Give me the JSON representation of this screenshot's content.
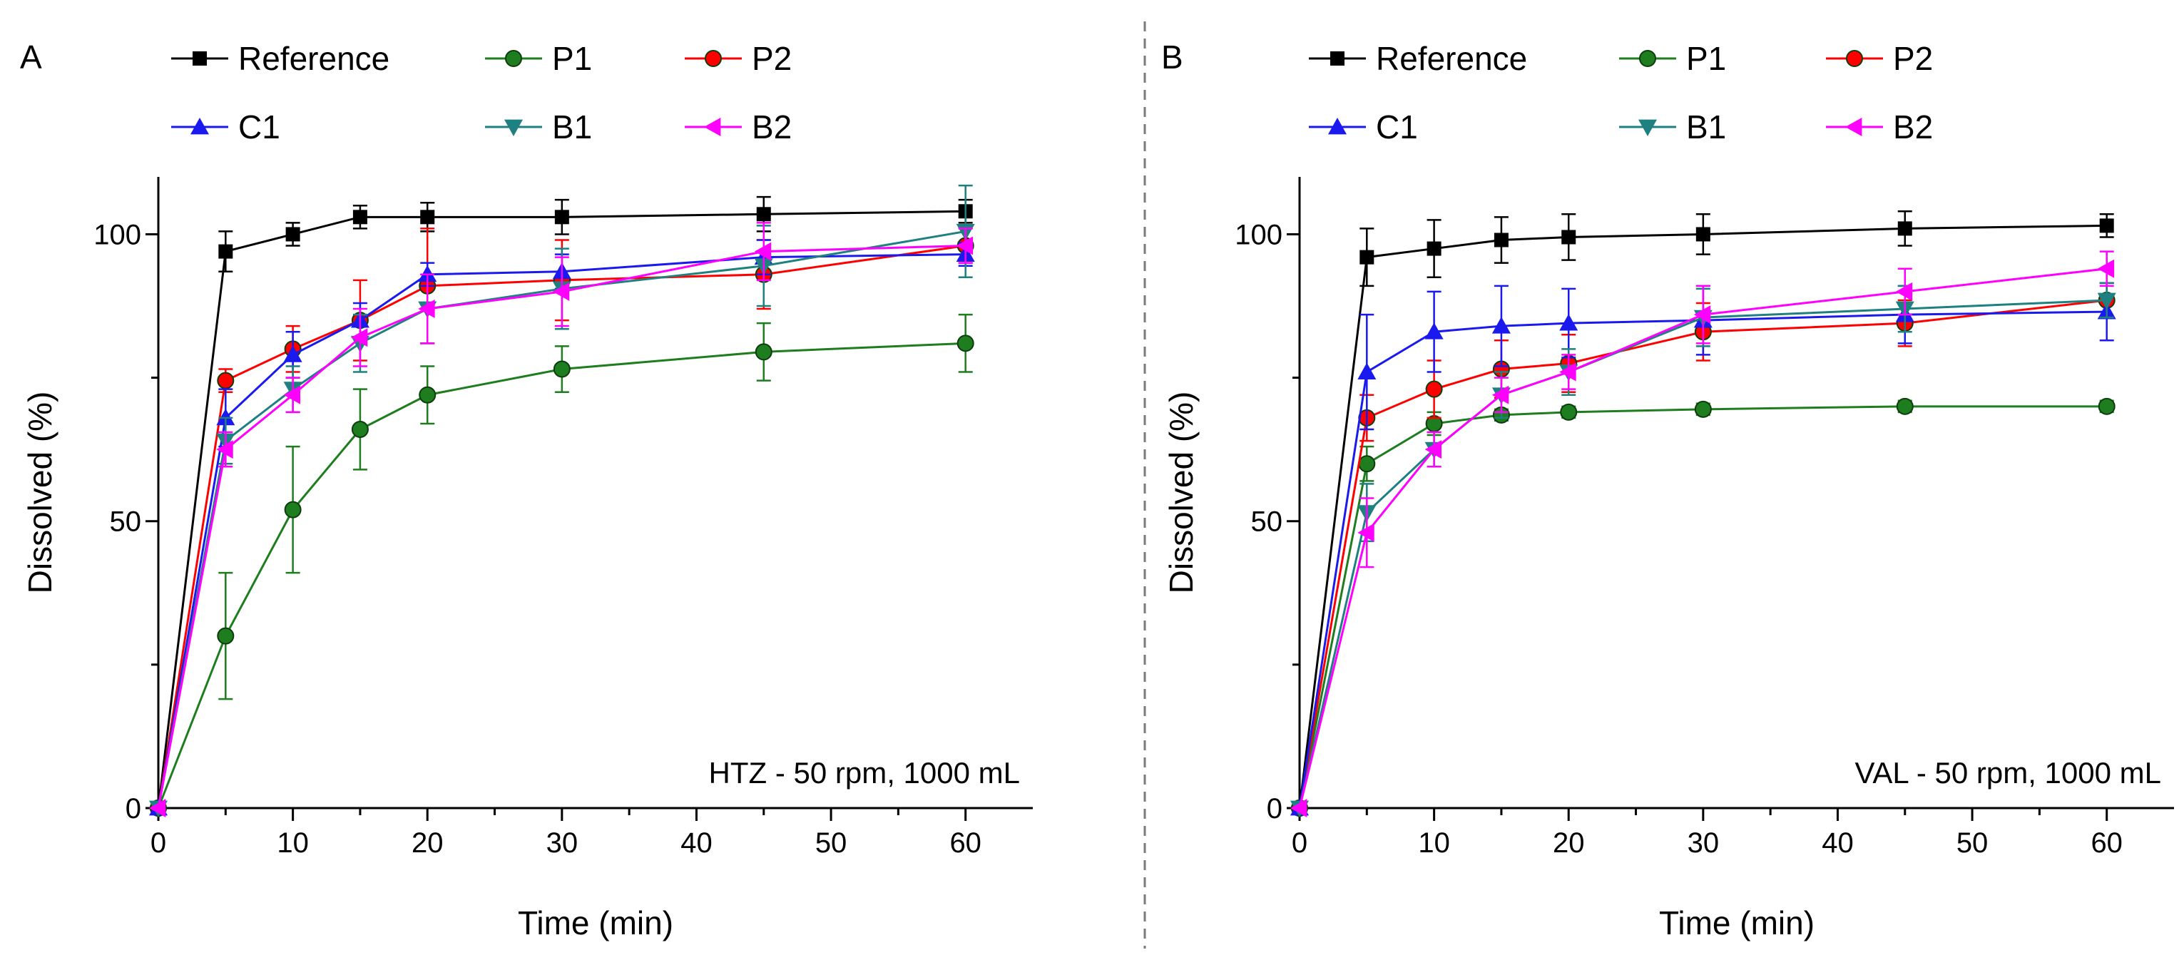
{
  "chart_data": [
    {
      "type": "line",
      "panel_label": "A",
      "annotation": "HTZ - 50 rpm, 1000 mL",
      "xlabel": "Time (min)",
      "ylabel": "Dissolved (%)",
      "xlim": [
        0,
        65
      ],
      "ylim": [
        0,
        110
      ],
      "xticks": [
        0,
        10,
        20,
        30,
        40,
        50,
        60
      ],
      "yticks": [
        0,
        50,
        100
      ],
      "xtick_labels": [
        "0",
        "10",
        "20",
        "30",
        "40",
        "50",
        "60"
      ],
      "ytick_labels": [
        "0",
        "50",
        "100"
      ],
      "legend_position": "top",
      "x": [
        0,
        5,
        10,
        15,
        20,
        30,
        45,
        60
      ],
      "series": [
        {
          "name": "Reference",
          "color": "#000000",
          "marker": "square",
          "values": [
            0,
            97,
            100,
            103,
            103,
            103,
            103.5,
            104
          ],
          "errors": [
            0,
            3.5,
            2,
            2,
            2.5,
            3,
            3,
            2
          ]
        },
        {
          "name": "P1",
          "color": "#1e7d1e",
          "marker": "circle",
          "values": [
            0,
            30,
            52,
            66,
            72,
            76.5,
            79.5,
            81
          ],
          "errors": [
            0,
            11,
            11,
            7,
            5,
            4,
            5,
            5
          ]
        },
        {
          "name": "P2",
          "color": "#ff0000",
          "marker": "circle",
          "values": [
            0,
            74.5,
            80,
            85,
            91,
            92,
            93,
            98
          ],
          "errors": [
            0,
            2,
            4,
            7,
            10,
            7,
            6,
            3
          ]
        },
        {
          "name": "C1",
          "color": "#1a1aee",
          "marker": "triangle-up",
          "values": [
            0,
            68,
            79,
            85,
            93,
            93.5,
            96,
            96.5
          ],
          "errors": [
            0,
            5,
            4,
            3,
            2,
            3,
            3,
            2
          ]
        },
        {
          "name": "B1",
          "color": "#1e8080",
          "marker": "triangle-down",
          "values": [
            0,
            64,
            73,
            81,
            87,
            90.5,
            94.5,
            100.5
          ],
          "errors": [
            0,
            4,
            4,
            5,
            6,
            7,
            7,
            8
          ]
        },
        {
          "name": "B2",
          "color": "#ff00ff",
          "marker": "triangle-left",
          "values": [
            0,
            62.5,
            72,
            82,
            87,
            90,
            97,
            98
          ],
          "errors": [
            0,
            3,
            3,
            5,
            6,
            6,
            5,
            3
          ]
        }
      ]
    },
    {
      "type": "line",
      "panel_label": "B",
      "annotation": "VAL - 50 rpm, 1000 mL",
      "xlabel": "Time (min)",
      "ylabel": "Dissolved (%)",
      "xlim": [
        0,
        65
      ],
      "ylim": [
        0,
        110
      ],
      "xticks": [
        0,
        10,
        20,
        30,
        40,
        50,
        60
      ],
      "yticks": [
        0,
        50,
        100
      ],
      "xtick_labels": [
        "0",
        "10",
        "20",
        "30",
        "40",
        "50",
        "60"
      ],
      "ytick_labels": [
        "0",
        "50",
        "100"
      ],
      "legend_position": "top",
      "x": [
        0,
        5,
        10,
        15,
        20,
        30,
        45,
        60
      ],
      "series": [
        {
          "name": "Reference",
          "color": "#000000",
          "marker": "square",
          "values": [
            0,
            96,
            97.5,
            99,
            99.5,
            100,
            101,
            101.5
          ],
          "errors": [
            0,
            5,
            5,
            4,
            4,
            3.5,
            3,
            2
          ]
        },
        {
          "name": "P1",
          "color": "#1e7d1e",
          "marker": "circle",
          "values": [
            0,
            60,
            67,
            68.5,
            69,
            69.5,
            70,
            70
          ],
          "errors": [
            0,
            3,
            2,
            1,
            1,
            1,
            1,
            1
          ]
        },
        {
          "name": "P2",
          "color": "#ff0000",
          "marker": "circle",
          "values": [
            0,
            68,
            73,
            76.5,
            77.5,
            83,
            84.5,
            88.5
          ],
          "errors": [
            0,
            4,
            5,
            5,
            5,
            5,
            4,
            3
          ]
        },
        {
          "name": "C1",
          "color": "#1a1aee",
          "marker": "triangle-up",
          "values": [
            0,
            76,
            83,
            84,
            84.5,
            85,
            86,
            86.5
          ],
          "errors": [
            0,
            10,
            7,
            7,
            6,
            6,
            5,
            5
          ]
        },
        {
          "name": "B1",
          "color": "#1e8080",
          "marker": "triangle-down",
          "values": [
            0,
            51.5,
            62.5,
            72,
            76,
            85.5,
            87,
            88.5
          ],
          "errors": [
            0,
            5,
            3,
            4,
            4,
            5,
            4,
            3
          ]
        },
        {
          "name": "B2",
          "color": "#ff00ff",
          "marker": "triangle-left",
          "values": [
            0,
            48,
            62.5,
            72,
            76,
            86,
            90,
            94
          ],
          "errors": [
            0,
            6,
            3,
            3,
            3,
            5,
            4,
            3
          ]
        }
      ]
    }
  ]
}
